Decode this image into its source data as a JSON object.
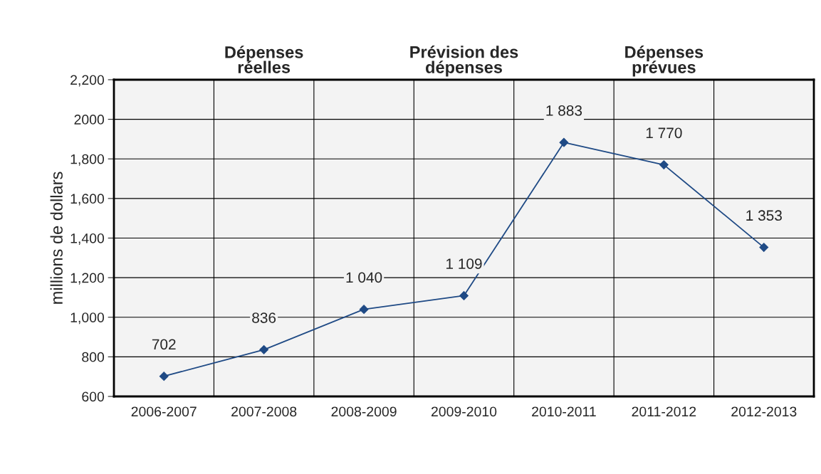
{
  "chart_data": {
    "type": "line",
    "ylabel": "millions de dollars",
    "categories": [
      "2006-2007",
      "2007-2008",
      "2008-2009",
      "2009-2010",
      "2010-2011",
      "2011-2012",
      "2012-2013"
    ],
    "series": [
      {
        "color": "#1f4a85",
        "values": [
          702,
          836,
          1040,
          1109,
          1883,
          1770,
          1353
        ],
        "value_labels": [
          "702",
          "836",
          "1 040",
          "1 109",
          "1 883",
          "1 770",
          "1 353"
        ]
      }
    ],
    "ylim": [
      600,
      2200
    ],
    "yticks": [
      600,
      800,
      {
        "value": 1000,
        "label": "1,000"
      },
      {
        "value": 1200,
        "label": "1,200"
      },
      {
        "value": 1400,
        "label": "1,400"
      },
      {
        "value": 1600,
        "label": "1,600"
      },
      {
        "value": 1800,
        "label": "1,800"
      },
      2000,
      {
        "value": 2200,
        "label": "2,200"
      }
    ],
    "annotations": [
      "Dépenses\nréelles",
      "Prévision des\ndépenses",
      "Dépenses\nprévues"
    ],
    "grid": true,
    "marker": "diamond",
    "line_style": "solid",
    "legend": false
  }
}
